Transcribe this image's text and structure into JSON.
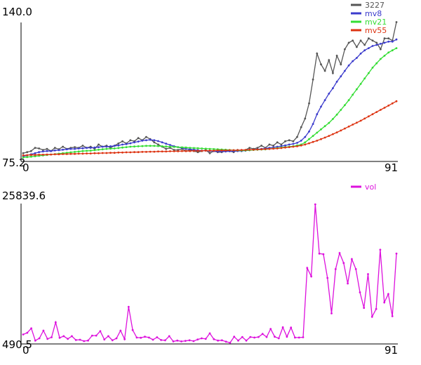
{
  "chart_data": [
    {
      "type": "line",
      "y_max_label": "140.0",
      "y_min_label": "75.2",
      "x_start_label": "0",
      "x_end_label": "91",
      "ylim": [
        75.2,
        140.0
      ],
      "xlim": [
        0,
        91
      ],
      "grid": false,
      "legend_position": "top-right",
      "series": [
        {
          "name": "3227",
          "color": "#555555",
          "values": [
            79.0,
            79.5,
            80.0,
            81.5,
            81.2,
            80.5,
            81.0,
            80.0,
            81.5,
            80.8,
            82.0,
            81.0,
            81.5,
            81.8,
            81.5,
            82.5,
            81.5,
            82.0,
            81.0,
            83.0,
            82.0,
            82.5,
            81.5,
            82.5,
            83.5,
            84.5,
            83.5,
            85.0,
            84.5,
            86.0,
            85.0,
            86.5,
            85.5,
            84.0,
            83.0,
            82.0,
            81.0,
            81.5,
            80.5,
            80.5,
            81.0,
            80.0,
            80.5,
            80.0,
            79.5,
            80.0,
            80.5,
            79.0,
            80.0,
            79.5,
            79.5,
            80.0,
            80.0,
            79.5,
            80.5,
            80.0,
            80.5,
            81.5,
            81.0,
            81.5,
            82.5,
            81.5,
            83.0,
            82.5,
            84.0,
            83.0,
            84.5,
            85.0,
            84.5,
            86.5,
            91.0,
            95.0,
            102.0,
            113.0,
            125.0,
            120.0,
            117.0,
            122.0,
            116.0,
            124.0,
            120.0,
            127.0,
            130.0,
            131.0,
            128.0,
            131.0,
            129.0,
            132.0,
            131.0,
            130.0,
            127.0,
            132.0,
            132.0,
            131.0,
            139.5
          ]
        },
        {
          "name": "mv8",
          "color": "#3b3bcc",
          "values": [
            77.5,
            78.0,
            78.5,
            79.0,
            79.5,
            79.8,
            80.0,
            80.0,
            80.3,
            80.4,
            80.6,
            80.8,
            81.0,
            81.0,
            81.2,
            81.3,
            81.5,
            81.5,
            81.6,
            81.8,
            82.0,
            82.0,
            82.2,
            82.4,
            82.6,
            83.0,
            83.2,
            83.6,
            84.0,
            84.4,
            84.8,
            85.0,
            85.2,
            85.0,
            84.6,
            84.0,
            83.4,
            82.8,
            82.2,
            81.8,
            81.4,
            81.0,
            80.8,
            80.6,
            80.4,
            80.2,
            80.2,
            80.0,
            80.0,
            79.8,
            79.8,
            79.8,
            79.9,
            79.9,
            80.0,
            80.1,
            80.2,
            80.4,
            80.6,
            80.8,
            81.0,
            81.2,
            81.5,
            81.7,
            82.0,
            82.3,
            82.6,
            83.0,
            83.3,
            83.8,
            84.8,
            86.5,
            89.0,
            92.5,
            97.0,
            100.5,
            103.5,
            106.5,
            109.0,
            112.0,
            114.5,
            117.0,
            119.5,
            121.5,
            123.0,
            125.0,
            126.5,
            127.5,
            128.5,
            129.0,
            129.5,
            130.0,
            130.5,
            130.5,
            131.5
          ]
        },
        {
          "name": "mv21",
          "color": "#33dd33",
          "values": [
            77.0,
            77.2,
            77.4,
            77.6,
            77.8,
            78.0,
            78.2,
            78.4,
            78.6,
            78.8,
            79.0,
            79.2,
            79.4,
            79.6,
            79.8,
            80.0,
            80.1,
            80.2,
            80.4,
            80.6,
            80.8,
            81.0,
            81.1,
            81.2,
            81.4,
            81.6,
            81.8,
            82.0,
            82.1,
            82.2,
            82.3,
            82.4,
            82.4,
            82.4,
            82.3,
            82.2,
            82.1,
            82.0,
            81.9,
            81.8,
            81.7,
            81.6,
            81.5,
            81.4,
            81.3,
            81.2,
            81.1,
            81.0,
            80.9,
            80.8,
            80.7,
            80.6,
            80.5,
            80.4,
            80.3,
            80.3,
            80.3,
            80.4,
            80.5,
            80.6,
            80.7,
            80.8,
            81.0,
            81.2,
            81.4,
            81.6,
            81.8,
            82.0,
            82.2,
            82.6,
            83.0,
            84.0,
            85.5,
            87.0,
            88.5,
            90.0,
            91.5,
            93.0,
            94.8,
            96.8,
            99.0,
            101.2,
            103.5,
            106.0,
            108.5,
            111.0,
            113.5,
            116.0,
            118.5,
            120.5,
            122.5,
            124.0,
            125.5,
            126.5,
            127.5
          ]
        },
        {
          "name": "mv55",
          "color": "#dd3311",
          "values": [
            78.0,
            78.1,
            78.2,
            78.2,
            78.3,
            78.3,
            78.4,
            78.4,
            78.5,
            78.5,
            78.6,
            78.6,
            78.7,
            78.7,
            78.8,
            78.8,
            78.9,
            78.9,
            79.0,
            79.0,
            79.1,
            79.1,
            79.2,
            79.2,
            79.3,
            79.3,
            79.4,
            79.4,
            79.5,
            79.5,
            79.6,
            79.6,
            79.7,
            79.7,
            79.8,
            79.8,
            79.8,
            79.9,
            79.9,
            79.9,
            80.0,
            80.0,
            80.0,
            80.1,
            80.1,
            80.1,
            80.2,
            80.2,
            80.2,
            80.3,
            80.3,
            80.3,
            80.4,
            80.4,
            80.4,
            80.5,
            80.5,
            80.6,
            80.6,
            80.7,
            80.8,
            80.9,
            81.0,
            81.1,
            81.2,
            81.4,
            81.6,
            81.8,
            82.0,
            82.2,
            82.6,
            83.0,
            83.6,
            84.2,
            84.8,
            85.5,
            86.2,
            87.0,
            87.8,
            88.6,
            89.5,
            90.4,
            91.3,
            92.2,
            93.1,
            94.0,
            95.0,
            96.0,
            97.0,
            98.0,
            99.0,
            100.0,
            101.0,
            102.0,
            103.0
          ]
        }
      ]
    },
    {
      "type": "line",
      "y_max_label": "25839.6",
      "y_min_label": "490.5",
      "x_start_label": "0",
      "x_end_label": "91",
      "ylim": [
        490.5,
        25839.6
      ],
      "xlim": [
        0,
        91
      ],
      "grid": false,
      "legend_position": "top-right",
      "series": [
        {
          "name": "vol",
          "color": "#dd11dd",
          "values": [
            2200,
            2500,
            3300,
            1100,
            1500,
            2900,
            1400,
            1700,
            4400,
            1600,
            1900,
            1400,
            1900,
            1200,
            1250,
            1000,
            1100,
            2000,
            2000,
            2800,
            1300,
            1900,
            1150,
            1500,
            2900,
            1350,
            7200,
            3000,
            1650,
            1600,
            1800,
            1650,
            1250,
            1700,
            1200,
            1150,
            1900,
            950,
            1100,
            950,
            1050,
            1150,
            1000,
            1300,
            1500,
            1400,
            2400,
            1350,
            1100,
            1150,
            900,
            700,
            1800,
            1100,
            1750,
            1100,
            1750,
            1650,
            1750,
            2300,
            1750,
            3200,
            1800,
            1500,
            3500,
            1800,
            3450,
            1650,
            1650,
            1700,
            14200,
            12700,
            25700,
            16800,
            16700,
            12400,
            6000,
            14000,
            16900,
            15100,
            11400,
            15800,
            14000,
            9800,
            7000,
            13100,
            5400,
            6800,
            17500,
            8000,
            9500,
            5500,
            16800
          ]
        }
      ]
    }
  ]
}
